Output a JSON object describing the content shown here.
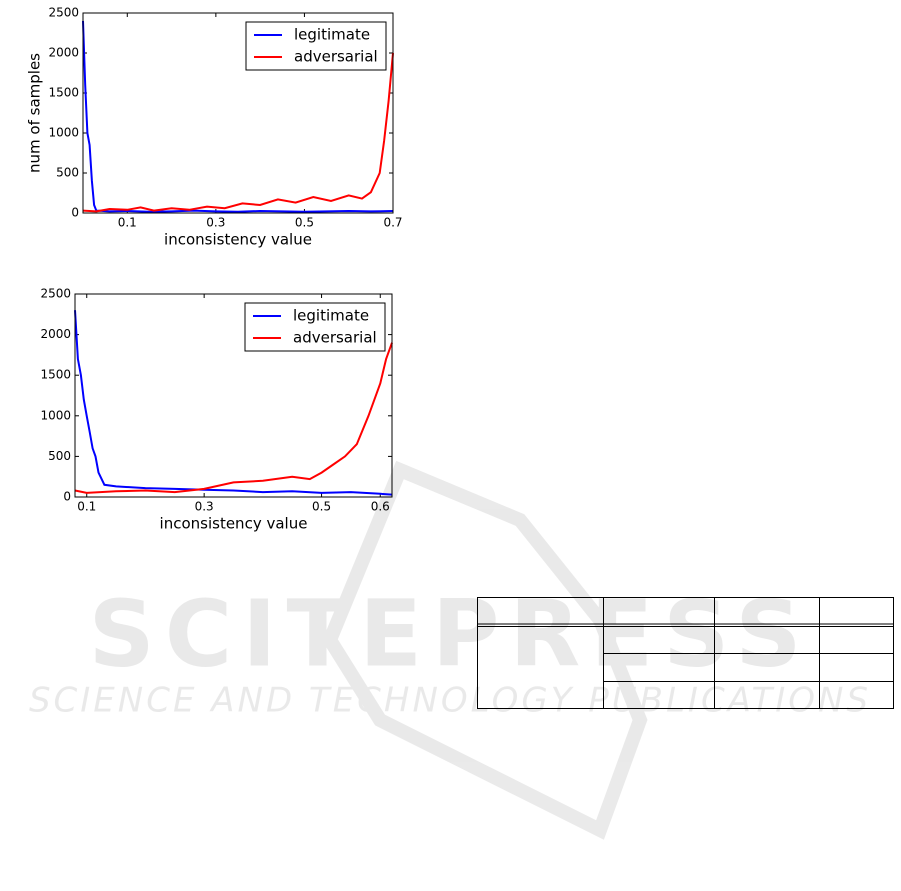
{
  "chart_data": [
    {
      "type": "line",
      "x_label": "inconsistency value",
      "y_label": "num of samples",
      "xlim": [
        0,
        0.7
      ],
      "xticks": [
        0.1,
        0.3,
        0.5,
        0.7
      ],
      "ylim": [
        0,
        2500
      ],
      "yticks": [
        0,
        500,
        1000,
        1500,
        2000,
        2500
      ],
      "legend": "upper right",
      "series": [
        {
          "name": "legitimate",
          "color": "#0000ff",
          "x": [
            0,
            0.005,
            0.01,
            0.015,
            0.02,
            0.025,
            0.03,
            0.06,
            0.1,
            0.15,
            0.2,
            0.25,
            0.3,
            0.35,
            0.4,
            0.45,
            0.5,
            0.55,
            0.6,
            0.65,
            0.7
          ],
          "values": [
            2400,
            1600,
            1000,
            850,
            400,
            100,
            30,
            20,
            25,
            15,
            20,
            30,
            20,
            15,
            25,
            20,
            15,
            20,
            25,
            20,
            25
          ]
        },
        {
          "name": "adversarial",
          "color": "#ff0000",
          "x": [
            0,
            0.03,
            0.06,
            0.1,
            0.13,
            0.16,
            0.2,
            0.24,
            0.28,
            0.32,
            0.36,
            0.4,
            0.44,
            0.48,
            0.52,
            0.56,
            0.6,
            0.63,
            0.65,
            0.67,
            0.68,
            0.69,
            0.7
          ],
          "values": [
            30,
            20,
            50,
            40,
            70,
            30,
            60,
            40,
            80,
            60,
            120,
            100,
            170,
            130,
            200,
            150,
            220,
            180,
            260,
            500,
            900,
            1400,
            2000
          ]
        }
      ]
    },
    {
      "type": "line",
      "x_label": "inconsistency value",
      "xlim": [
        0.08,
        0.62
      ],
      "xticks": [
        0.1,
        0.3,
        0.5,
        0.6
      ],
      "ylim": [
        0,
        2500
      ],
      "yticks": [
        0,
        500,
        1000,
        1500,
        2000,
        2500
      ],
      "legend": "upper right",
      "series": [
        {
          "name": "legitimate",
          "color": "#0000ff",
          "x": [
            0.08,
            0.085,
            0.09,
            0.095,
            0.1,
            0.105,
            0.11,
            0.115,
            0.12,
            0.13,
            0.15,
            0.2,
            0.25,
            0.3,
            0.35,
            0.4,
            0.45,
            0.5,
            0.55,
            0.6,
            0.62
          ],
          "values": [
            2300,
            1700,
            1500,
            1200,
            1000,
            800,
            600,
            500,
            300,
            150,
            130,
            110,
            100,
            90,
            80,
            60,
            70,
            50,
            60,
            40,
            30
          ]
        },
        {
          "name": "adversarial",
          "color": "#ff0000",
          "x": [
            0.08,
            0.1,
            0.15,
            0.2,
            0.25,
            0.3,
            0.35,
            0.4,
            0.45,
            0.48,
            0.5,
            0.52,
            0.54,
            0.56,
            0.58,
            0.6,
            0.61,
            0.62
          ],
          "values": [
            80,
            50,
            70,
            80,
            60,
            100,
            180,
            200,
            250,
            220,
            300,
            400,
            500,
            650,
            1000,
            1400,
            1700,
            1900
          ]
        }
      ]
    }
  ],
  "watermark": {
    "logo": "SCITEPRESS",
    "tagline": "SCIENCE AND TECHNOLOGY PUBLICATIONS"
  }
}
